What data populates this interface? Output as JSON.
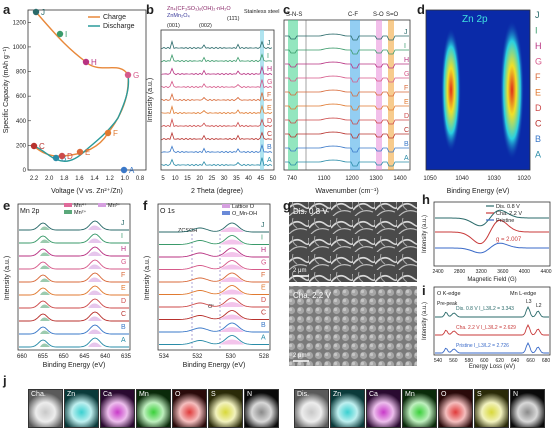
{
  "panel_labels": {
    "a": "a",
    "b": "b",
    "c": "c",
    "d": "d",
    "e": "e",
    "f": "f",
    "g": "g",
    "h": "h",
    "i": "i",
    "j": "j"
  },
  "colors": {
    "charge": "#e8883a",
    "discharge": "#2a9a9a",
    "samples": [
      "#2a8ca8",
      "#3a78c8",
      "#b8322e",
      "#cc4a4a",
      "#e07a30",
      "#d86a3a",
      "#d65a8a",
      "#b83282",
      "#3a9a6a",
      "#2a6a6a"
    ]
  },
  "panel_a": {
    "xlabel": "Voltage (V vs. Zn²⁺/Zn)",
    "ylabel": "Specific Capacity (mAh g⁻¹)",
    "xticks": [
      "2.2",
      "2.0",
      "1.8",
      "1.6",
      "1.4",
      "1.2",
      "1.0",
      "0.8"
    ],
    "yticks": [
      "0",
      "200",
      "400",
      "600",
      "800",
      "1000",
      "1200"
    ],
    "legend": [
      "Charge",
      "Discharge"
    ],
    "points": [
      "A",
      "B",
      "C",
      "D",
      "E",
      "F",
      "G",
      "H",
      "I",
      "J"
    ]
  },
  "panel_b": {
    "xlabel": "2 Theta (degree)",
    "ylabel": "Intensity (a.u.)",
    "xticks": [
      "5",
      "10",
      "15",
      "20",
      "25",
      "30",
      "35",
      "40",
      "45",
      "50"
    ],
    "legend": [
      "Zn₄(CF₃SO₃)₆(OH)₂·nH₂O",
      "ZnMn₂O₄"
    ],
    "peaks": [
      "(001)",
      "(002)",
      "(11̄1)"
    ],
    "annot": "Stainless steel",
    "curves": [
      "J",
      "I",
      "H",
      "G",
      "F",
      "E",
      "D",
      "C",
      "B",
      "A"
    ]
  },
  "panel_c": {
    "xlabel": "Wavenumber (cm⁻¹)",
    "xticks": [
      "740",
      "1100",
      "1200",
      "1300",
      "1400"
    ],
    "bands": [
      "S-N-S",
      "C-F",
      "S-O",
      "S=O"
    ],
    "curves": [
      "J",
      "I",
      "H",
      "G",
      "F",
      "E",
      "D",
      "C",
      "B",
      "A"
    ]
  },
  "panel_d": {
    "title": "Zn 2p",
    "xlabel": "Binding Energy (eV)",
    "xticks": [
      "1050",
      "1040",
      "1030",
      "1020"
    ],
    "labels": [
      "J",
      "I",
      "H",
      "G",
      "F",
      "E",
      "D",
      "C",
      "B",
      "A"
    ]
  },
  "panel_e": {
    "title": "Mn 2p",
    "xlabel": "Binding Energy (eV)",
    "ylabel": "Intensity (a.u.)",
    "xticks": [
      "660",
      "655",
      "650",
      "645",
      "640",
      "635"
    ],
    "legend": [
      "Mn⁴⁺",
      "Mn³⁺",
      "Mn²⁺"
    ],
    "curves": [
      "J",
      "I",
      "H",
      "G",
      "F",
      "E",
      "D",
      "C",
      "B",
      "A"
    ]
  },
  "panel_f": {
    "title": "O 1s",
    "xlabel": "Binding Energy (eV)",
    "ylabel": "Intensity (a.u.)",
    "xticks": [
      "534",
      "532",
      "530",
      "528"
    ],
    "legend": [
      "Lattice O",
      "O_Mn-OH"
    ],
    "annot1": "ZCSOH",
    "annot2": "Oᵛ",
    "curves": [
      "J",
      "I",
      "H",
      "G",
      "F",
      "E",
      "D",
      "C",
      "B",
      "A"
    ]
  },
  "panel_g": {
    "top_label": "Dis. 0.8 V",
    "bottom_label": "Cha. 2.2 V",
    "scale": "2 μm"
  },
  "panel_h": {
    "xlabel": "Magnetic Field (G)",
    "ylabel": "Intensity (a.u.)",
    "xticks": [
      "2400",
      "2800",
      "3200",
      "3600",
      "4000",
      "4400"
    ],
    "legend": [
      "Dis. 0.8 V",
      "Cha. 2.2 V",
      "Pristine"
    ],
    "annot": "g = 2.007"
  },
  "panel_i": {
    "xlabel": "Energy Loss (eV)",
    "ylabel": "Intensity (a.u.)",
    "xticks": [
      "540",
      "560",
      "580",
      "600",
      "620",
      "640",
      "660",
      "680"
    ],
    "edge1": "O K-edge",
    "edge2": "Mn L-edge",
    "prepeak": "Pre-peak",
    "l3": "L3",
    "l2": "L2",
    "series": [
      "Dis. 0.8 V  I_L3/L2 = 3.343",
      "Cha. 2.2 V  I_L3/L2 = 2.629",
      "Pristine  I_L3/L2 = 2.726"
    ]
  },
  "panel_j": {
    "tiles": [
      "Cha.",
      "Zn",
      "Ca",
      "Mn",
      "O",
      "S",
      "N",
      "Dis.",
      "Zn",
      "Ca",
      "Mn",
      "O",
      "S",
      "N"
    ],
    "scale1": "200 nm",
    "scale2": "200 nm"
  }
}
